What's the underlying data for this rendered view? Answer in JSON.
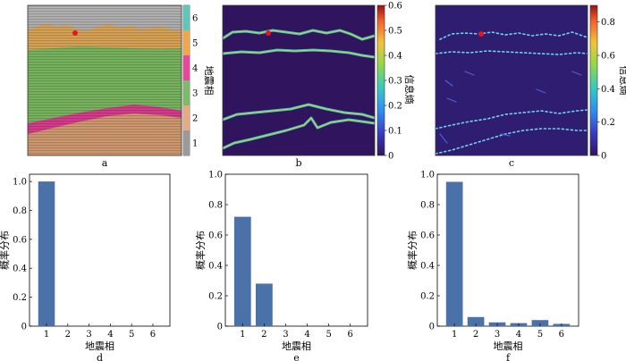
{
  "top_panels": [
    {
      "label": "a",
      "kind": "seismic facies section",
      "colorbar": {
        "title": "地震相",
        "ticks": [
          "1",
          "2",
          "3",
          "4",
          "5",
          "6"
        ],
        "colors": [
          "#9a9a9a",
          "#e6ab82",
          "#7fba6c",
          "#e9479b",
          "#f2a64b",
          "#5fc7ba"
        ]
      }
    },
    {
      "label": "b",
      "kind": "information entropy map",
      "colorbar": {
        "title": "信息熵",
        "ticks": [
          "0",
          "0.1",
          "0.2",
          "0.3",
          "0.4",
          "0.5",
          "0.6"
        ],
        "range": [
          0,
          0.6
        ]
      }
    },
    {
      "label": "c",
      "kind": "information entropy map",
      "colorbar": {
        "title": "信息熵",
        "ticks": [
          "0",
          "0.2",
          "0.4",
          "0.6",
          "0.8"
        ],
        "range": [
          0,
          0.9
        ]
      }
    }
  ],
  "chart_data": [
    {
      "type": "bar",
      "label": "d",
      "categories": [
        "1",
        "2",
        "3",
        "4",
        "5",
        "6"
      ],
      "values": [
        1.0,
        0,
        0,
        0,
        0,
        0
      ],
      "xlabel": "地震相",
      "ylabel": "概率分布",
      "ylim": [
        0,
        1.05
      ],
      "yticks": [
        "0",
        "0.2",
        "0.4",
        "0.6",
        "0.8",
        "1.0"
      ],
      "color": "#4a72a8"
    },
    {
      "type": "bar",
      "label": "e",
      "categories": [
        "1",
        "2",
        "3",
        "4",
        "5",
        "6"
      ],
      "values": [
        0.72,
        0.28,
        0,
        0,
        0,
        0
      ],
      "xlabel": "地震相",
      "ylabel": "概率分布",
      "ylim": [
        0,
        1.0
      ],
      "yticks": [
        "0",
        "0.2",
        "0.4",
        "0.6",
        "0.8",
        "1.0"
      ],
      "color": "#4a72a8"
    },
    {
      "type": "bar",
      "label": "f",
      "categories": [
        "1",
        "2",
        "3",
        "4",
        "5",
        "6"
      ],
      "values": [
        0.95,
        0.06,
        0.025,
        0.02,
        0.04,
        0.015
      ],
      "xlabel": "地震相",
      "ylabel": "概率分布",
      "ylim": [
        0,
        1.0
      ],
      "yticks": [
        "0",
        "0.2",
        "0.4",
        "0.6",
        "0.8",
        "1.0"
      ],
      "color": "#4a72a8"
    }
  ]
}
